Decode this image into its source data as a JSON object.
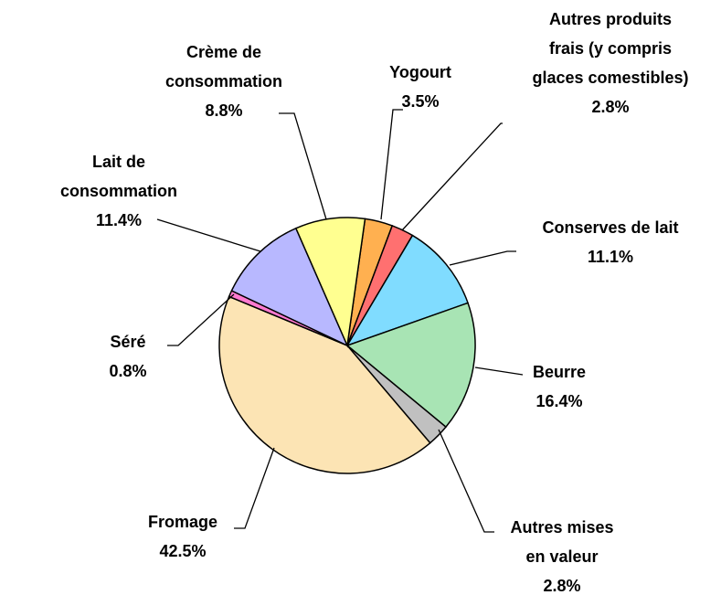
{
  "chart_data": {
    "type": "pie",
    "start_angle": 8,
    "categories": [
      "Yogourt",
      "Autres produits\nfrais (y compris\nglaces comestibles)",
      "Conserves de lait",
      "Beurre",
      "Autres mises\nen valeur",
      "Fromage",
      "Séré",
      "Lait de\nconsommation",
      "Crème de\nconsommation"
    ],
    "values": [
      3.5,
      2.8,
      11.1,
      16.4,
      2.8,
      42.5,
      0.8,
      11.4,
      8.8
    ],
    "value_labels": [
      "3.5%",
      "2.8%",
      "11.1%",
      "16.4%",
      "2.8%",
      "42.5%",
      "0.8%",
      "11.4%",
      "8.8%"
    ],
    "colors": [
      "#ffb050",
      "#ff7070",
      "#80dcff",
      "#a8e4b4",
      "#c0c0c0",
      "#fce4b4",
      "#ff7ad0",
      "#b8b8ff",
      "#ffff90"
    ]
  }
}
